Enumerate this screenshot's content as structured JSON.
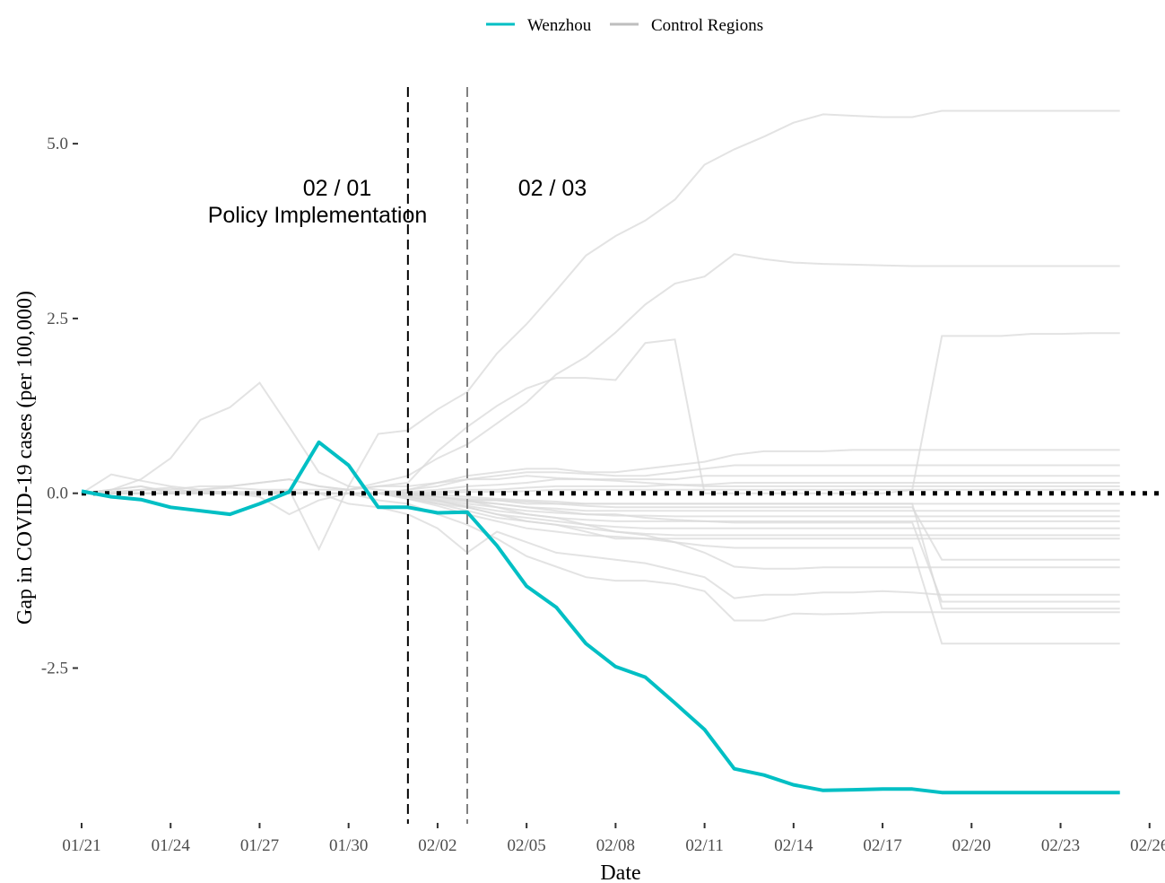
{
  "chart_data": {
    "type": "line",
    "title": "",
    "xlabel": "Date",
    "ylabel": "Gap in COVID-19 cases (per 100,000)",
    "x_tick_labels": [
      "01/21",
      "01/24",
      "01/27",
      "01/30",
      "02/02",
      "02/05",
      "02/08",
      "02/11",
      "02/14",
      "02/17",
      "02/20",
      "02/23",
      "02/26"
    ],
    "y_tick_labels": [
      "5.0",
      "2.5",
      "0.0",
      "-2.5"
    ],
    "xlim": [
      0,
      36.4
    ],
    "ylim": [
      -4.65,
      5.9
    ],
    "x_is_days_since": "01/21",
    "legend": {
      "position": "top-center",
      "entries": [
        {
          "label": "Wenzhou",
          "color": "#00BFC4"
        },
        {
          "label": "Control Regions",
          "color": "#bebebe"
        }
      ]
    },
    "reference_lines": [
      {
        "axis": "y",
        "value": 0,
        "style": "dotted",
        "color": "#000000"
      },
      {
        "axis": "x",
        "value": 11,
        "style": "dashed",
        "color": "#000000"
      },
      {
        "axis": "x",
        "value": 13,
        "style": "dashed",
        "color": "#808080"
      }
    ],
    "annotations": [
      {
        "lines": [
          "02 / 01",
          "Policy Implementation"
        ]
      },
      {
        "lines": [
          "02 / 03"
        ]
      }
    ],
    "x": [
      0,
      1,
      2,
      3,
      4,
      5,
      6,
      7,
      8,
      9,
      10,
      11,
      12,
      13,
      14,
      15,
      16,
      17,
      18,
      19,
      20,
      21,
      22,
      23,
      24,
      25,
      26,
      27,
      28,
      29,
      30,
      31,
      32,
      33,
      34,
      35
    ],
    "series": [
      {
        "name": "Wenzhou",
        "color": "#00BFC4",
        "values": [
          0.03,
          -0.05,
          -0.09,
          -0.2,
          -0.25,
          -0.3,
          -0.15,
          0.02,
          0.73,
          0.4,
          -0.2,
          -0.2,
          -0.28,
          -0.27,
          -0.75,
          -1.33,
          -1.63,
          -2.15,
          -2.48,
          -2.63,
          -3.0,
          -3.38,
          -3.94,
          -4.03,
          -4.17,
          -4.25,
          -4.24,
          -4.23,
          -4.23,
          -4.28,
          -4.28,
          -4.28,
          -4.28,
          -4.28,
          -4.28,
          -4.28
        ]
      },
      {
        "name": "Control Regions",
        "color": "#d9d9d9",
        "values": [
          0.0,
          0.05,
          0.2,
          0.5,
          1.05,
          1.23,
          1.58,
          0.95,
          0.3,
          0.1,
          0.85,
          0.9,
          1.2,
          1.45,
          2.0,
          2.42,
          2.9,
          3.4,
          3.68,
          3.9,
          4.2,
          4.7,
          4.92,
          5.1,
          5.3,
          5.42,
          5.4,
          5.38,
          5.38,
          5.47,
          5.47,
          5.47,
          5.47,
          5.47,
          5.47,
          5.47
        ]
      },
      {
        "color": "#d9d9d9",
        "values": [
          0.0,
          0.02,
          0.05,
          0.05,
          0.1,
          0.1,
          0.15,
          0.2,
          0.1,
          0.05,
          0.15,
          0.25,
          0.5,
          0.7,
          1.0,
          1.3,
          1.7,
          1.95,
          2.3,
          2.7,
          3.0,
          3.1,
          3.42,
          3.35,
          3.3,
          3.28,
          3.27,
          3.26,
          3.25,
          3.25,
          3.25,
          3.25,
          3.25,
          3.25,
          3.25,
          3.25
        ]
      },
      {
        "color": "#d9d9d9",
        "values": [
          0.0,
          0.05,
          0.1,
          0.0,
          0.05,
          0.1,
          0.15,
          0.2,
          0.1,
          0.05,
          0.1,
          0.15,
          0.6,
          0.95,
          1.25,
          1.5,
          1.65,
          1.65,
          1.62,
          2.15,
          2.2,
          0.0,
          0.0,
          0.0,
          0.0,
          0.0,
          0.0,
          0.0,
          0.05,
          2.25,
          2.25,
          2.25,
          2.28,
          2.28,
          2.29,
          2.29
        ]
      },
      {
        "color": "#d9d9d9",
        "values": [
          0.0,
          0.27,
          0.18,
          0.1,
          0.05,
          0.0,
          -0.02,
          0.05,
          -0.8,
          0.1,
          0.05,
          0.0,
          -0.05,
          -0.1,
          -0.2,
          -0.3,
          -0.35,
          -0.45,
          -0.55,
          -0.6,
          -0.7,
          -0.85,
          -1.05,
          -1.08,
          -1.08,
          -1.06,
          -1.06,
          -1.06,
          -1.06,
          -1.06,
          -1.06,
          -1.06,
          -1.06,
          -1.06,
          -1.06,
          -1.06
        ]
      },
      {
        "color": "#d9d9d9",
        "values": [
          0.0,
          0.0,
          0.05,
          0.08,
          0.0,
          0.0,
          -0.05,
          -0.3,
          -0.1,
          0.0,
          -0.1,
          -0.15,
          -0.3,
          -0.45,
          -0.65,
          -0.9,
          -1.05,
          -1.2,
          -1.25,
          -1.25,
          -1.3,
          -1.4,
          -1.82,
          -1.82,
          -1.72,
          -1.73,
          -1.72,
          -1.7,
          -1.7,
          -1.7,
          -1.7,
          -1.7,
          -1.7,
          -1.7,
          -1.7,
          -1.7
        ]
      },
      {
        "color": "#d9d9d9",
        "values": [
          0.0,
          0.0,
          0.0,
          0.0,
          0.02,
          0.02,
          0.02,
          0.02,
          0.0,
          -0.15,
          -0.2,
          -0.3,
          -0.5,
          -0.85,
          -0.55,
          -0.7,
          -0.85,
          -0.9,
          -0.95,
          -1.0,
          -1.1,
          -1.2,
          -1.5,
          -1.45,
          -1.45,
          -1.42,
          -1.42,
          -1.4,
          -1.42,
          -1.45,
          -1.45,
          -1.45,
          -1.45,
          -1.45,
          -1.45,
          -1.45
        ]
      },
      {
        "color": "#d9d9d9",
        "values": [
          0.0,
          0.0,
          0.0,
          0.0,
          0.0,
          0.0,
          0.0,
          0.0,
          0.0,
          0.0,
          0.0,
          0.0,
          -0.1,
          -0.2,
          -0.3,
          -0.4,
          -0.45,
          -0.55,
          -0.65,
          -0.65,
          -0.7,
          -0.75,
          -0.78,
          -0.78,
          -0.78,
          -0.78,
          -0.78,
          -0.78,
          -0.78,
          -2.15,
          -2.15,
          -2.15,
          -2.15,
          -2.15,
          -2.15,
          -2.15
        ]
      },
      {
        "color": "#d9d9d9",
        "values": [
          0.0,
          0.0,
          0.0,
          0.0,
          0.0,
          0.0,
          0.0,
          0.0,
          0.0,
          0.0,
          0.0,
          0.0,
          -0.05,
          -0.1,
          -0.15,
          -0.2,
          -0.25,
          -0.3,
          -0.3,
          -0.35,
          -0.38,
          -0.4,
          -0.42,
          -0.42,
          -0.42,
          -0.42,
          -0.42,
          -0.42,
          -0.42,
          -1.55,
          -1.55,
          -1.55,
          -1.55,
          -1.55,
          -1.55,
          -1.55
        ]
      },
      {
        "color": "#d9d9d9",
        "values": [
          0.0,
          0.0,
          0.0,
          0.0,
          0.0,
          0.0,
          0.0,
          0.0,
          0.0,
          0.0,
          0.0,
          0.05,
          0.15,
          0.25,
          0.3,
          0.35,
          0.35,
          0.3,
          0.3,
          0.35,
          0.4,
          0.45,
          0.55,
          0.6,
          0.6,
          0.6,
          0.62,
          0.62,
          0.62,
          0.62,
          0.62,
          0.62,
          0.62,
          0.62,
          0.62,
          0.62
        ]
      },
      {
        "color": "#d9d9d9",
        "values": [
          0.0,
          0.0,
          0.0,
          0.0,
          0.0,
          0.0,
          0.0,
          0.0,
          0.0,
          0.0,
          0.0,
          0.05,
          0.1,
          0.2,
          0.25,
          0.3,
          0.3,
          0.28,
          0.25,
          0.25,
          0.3,
          0.35,
          0.4,
          0.4,
          0.4,
          0.4,
          0.4,
          0.4,
          0.4,
          0.4,
          0.4,
          0.4,
          0.4,
          0.4,
          0.4,
          0.4
        ]
      },
      {
        "color": "#d9d9d9",
        "values": [
          0.0,
          0.0,
          0.0,
          0.0,
          0.0,
          0.0,
          0.0,
          0.0,
          0.0,
          0.0,
          0.0,
          0.02,
          0.05,
          0.1,
          0.12,
          0.15,
          0.2,
          0.2,
          0.2,
          0.2,
          0.2,
          0.25,
          0.25,
          0.25,
          0.25,
          0.25,
          0.25,
          0.25,
          0.25,
          0.25,
          0.25,
          0.25,
          0.25,
          0.25,
          0.25,
          0.25
        ]
      },
      {
        "color": "#d9d9d9",
        "values": [
          0.0,
          0.0,
          0.0,
          0.0,
          0.0,
          0.0,
          0.0,
          0.0,
          0.0,
          0.0,
          0.0,
          0.0,
          0.02,
          0.05,
          0.05,
          0.08,
          0.1,
          0.1,
          0.1,
          0.1,
          0.12,
          0.12,
          0.15,
          0.15,
          0.15,
          0.15,
          0.15,
          0.15,
          0.15,
          0.15,
          0.15,
          0.15,
          0.15,
          0.15,
          0.15,
          0.15
        ]
      },
      {
        "color": "#d9d9d9",
        "values": [
          0.0,
          0.0,
          0.0,
          0.0,
          0.0,
          0.0,
          0.0,
          0.0,
          0.0,
          0.0,
          0.0,
          0.0,
          0.0,
          0.02,
          0.02,
          0.03,
          0.05,
          0.05,
          0.05,
          0.05,
          0.05,
          0.05,
          0.05,
          0.05,
          0.05,
          0.05,
          0.05,
          0.05,
          0.05,
          0.05,
          0.05,
          0.05,
          0.05,
          0.05,
          0.05,
          0.05
        ]
      },
      {
        "color": "#d9d9d9",
        "values": [
          0.0,
          0.0,
          0.0,
          0.0,
          0.0,
          0.0,
          0.0,
          0.0,
          0.0,
          0.0,
          0.0,
          -0.02,
          -0.05,
          -0.08,
          -0.1,
          -0.12,
          -0.15,
          -0.15,
          -0.15,
          -0.15,
          -0.15,
          -0.15,
          -0.15,
          -0.15,
          -0.15,
          -0.15,
          -0.15,
          -0.15,
          -0.15,
          -0.15,
          -0.15,
          -0.15,
          -0.15,
          -0.15,
          -0.15,
          -0.15
        ]
      },
      {
        "color": "#d9d9d9",
        "values": [
          0.0,
          0.0,
          0.0,
          0.0,
          0.0,
          0.0,
          0.0,
          0.0,
          0.0,
          0.0,
          0.0,
          -0.03,
          -0.08,
          -0.12,
          -0.15,
          -0.2,
          -0.22,
          -0.25,
          -0.25,
          -0.25,
          -0.25,
          -0.25,
          -0.25,
          -0.25,
          -0.25,
          -0.25,
          -0.25,
          -0.25,
          -0.25,
          -0.25,
          -0.25,
          -0.25,
          -0.25,
          -0.25,
          -0.25,
          -0.25
        ]
      },
      {
        "color": "#d9d9d9",
        "values": [
          0.0,
          0.0,
          0.0,
          0.0,
          0.0,
          0.0,
          0.0,
          0.0,
          0.0,
          0.0,
          0.0,
          -0.05,
          -0.1,
          -0.15,
          -0.2,
          -0.25,
          -0.28,
          -0.3,
          -0.32,
          -0.32,
          -0.33,
          -0.33,
          -0.33,
          -0.33,
          -0.33,
          -0.33,
          -0.33,
          -0.33,
          -0.33,
          -0.33,
          -0.33,
          -0.33,
          -0.33,
          -0.33,
          -0.33,
          -0.33
        ]
      },
      {
        "color": "#d9d9d9",
        "values": [
          0.0,
          0.0,
          0.0,
          0.0,
          0.0,
          0.0,
          0.0,
          0.0,
          0.0,
          0.0,
          0.0,
          -0.05,
          -0.12,
          -0.18,
          -0.25,
          -0.3,
          -0.35,
          -0.38,
          -0.4,
          -0.4,
          -0.4,
          -0.4,
          -0.4,
          -0.4,
          -0.4,
          -0.4,
          -0.4,
          -0.4,
          -0.4,
          -0.4,
          -0.4,
          -0.4,
          -0.4,
          -0.4,
          -0.4,
          -0.4
        ]
      },
      {
        "color": "#d9d9d9",
        "values": [
          0.0,
          0.0,
          0.0,
          0.0,
          0.0,
          0.0,
          0.0,
          0.0,
          0.0,
          0.0,
          0.0,
          -0.05,
          -0.15,
          -0.2,
          -0.3,
          -0.35,
          -0.4,
          -0.45,
          -0.48,
          -0.5,
          -0.5,
          -0.5,
          -0.5,
          -0.5,
          -0.5,
          -0.5,
          -0.5,
          -0.5,
          -0.5,
          -0.5,
          -0.5,
          -0.5,
          -0.5,
          -0.5,
          -0.5,
          -0.5
        ]
      },
      {
        "color": "#d9d9d9",
        "values": [
          0.0,
          0.0,
          0.0,
          0.0,
          0.0,
          0.0,
          0.0,
          0.0,
          0.0,
          0.0,
          0.0,
          -0.08,
          -0.15,
          -0.25,
          -0.35,
          -0.4,
          -0.45,
          -0.5,
          -0.55,
          -0.58,
          -0.6,
          -0.6,
          -0.6,
          -0.6,
          -0.6,
          -0.6,
          -0.6,
          -0.6,
          -0.6,
          -0.6,
          -0.6,
          -0.6,
          -0.6,
          -0.6,
          -0.6,
          -0.6
        ]
      },
      {
        "color": "#d9d9d9",
        "values": [
          0.0,
          0.0,
          0.0,
          0.0,
          0.0,
          0.0,
          0.0,
          0.0,
          0.0,
          0.0,
          0.0,
          -0.08,
          -0.18,
          -0.3,
          -0.4,
          -0.5,
          -0.55,
          -0.6,
          -0.62,
          -0.65,
          -0.65,
          -0.65,
          -0.65,
          -0.65,
          -0.65,
          -0.65,
          -0.65,
          -0.65,
          -0.65,
          -0.65,
          -0.65,
          -0.65,
          -0.65,
          -0.65,
          -0.65,
          -0.65
        ]
      },
      {
        "color": "#d9d9d9",
        "values": [
          0.0,
          0.05,
          0.1,
          0.02,
          0.05,
          0.08,
          0.05,
          0.05,
          0.05,
          0.05,
          0.1,
          0.1,
          0.15,
          0.2,
          0.2,
          0.25,
          0.22,
          0.2,
          0.18,
          0.15,
          0.12,
          0.1,
          0.1,
          0.1,
          0.1,
          0.1,
          0.1,
          0.1,
          0.1,
          0.1,
          0.1,
          0.1,
          0.1,
          0.1,
          0.1,
          0.1
        ]
      },
      {
        "color": "#d9d9d9",
        "values": [
          0.0,
          0.0,
          0.0,
          0.0,
          0.0,
          0.0,
          0.0,
          0.0,
          0.0,
          0.0,
          0.0,
          0.0,
          -0.05,
          -0.1,
          -0.1,
          -0.15,
          -0.15,
          -0.18,
          -0.2,
          -0.2,
          -0.2,
          -0.2,
          -0.2,
          -0.2,
          -0.2,
          -0.2,
          -0.2,
          -0.2,
          -0.2,
          -0.95,
          -0.95,
          -0.95,
          -0.95,
          -0.95,
          -0.95,
          -0.95
        ]
      },
      {
        "color": "#d9d9d9",
        "values": [
          0.0,
          0.0,
          0.0,
          0.0,
          0.0,
          0.0,
          0.0,
          0.0,
          0.0,
          0.0,
          0.0,
          0.0,
          -0.02,
          -0.05,
          -0.08,
          -0.1,
          -0.12,
          -0.15,
          -0.15,
          -0.15,
          -0.15,
          -0.15,
          -0.15,
          -0.15,
          -0.15,
          -0.15,
          -0.15,
          -0.15,
          -0.15,
          -1.65,
          -1.65,
          -1.65,
          -1.65,
          -1.65,
          -1.65,
          -1.65
        ]
      }
    ]
  }
}
